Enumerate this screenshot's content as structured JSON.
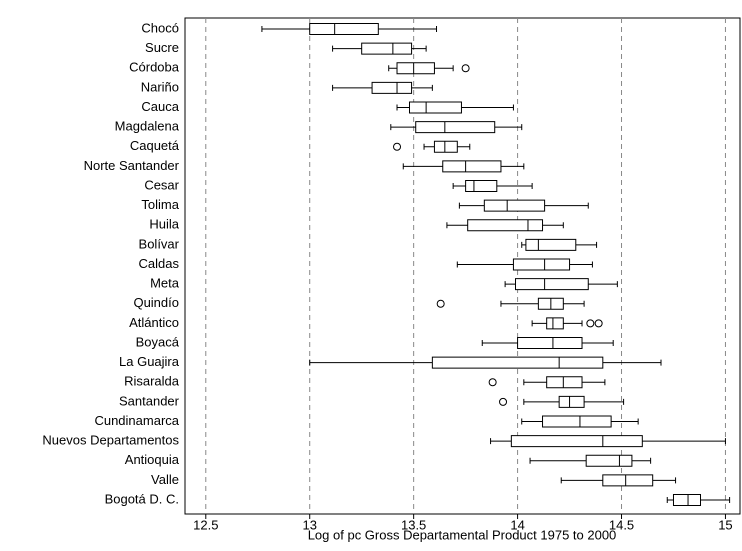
{
  "chart_data": {
    "type": "box",
    "orientation": "horizontal",
    "xlabel": "Log of pc Gross Departamental Product 1975 to 2000",
    "categories": [
      "Chocó",
      "Sucre",
      "Córdoba",
      "Nariño",
      "Cauca",
      "Magdalena",
      "Caquetá",
      "Norte Santander",
      "Cesar",
      "Tolima",
      "Huila",
      "Bolívar",
      "Caldas",
      "Meta",
      "Quindío",
      "Atlántico",
      "Boyacá",
      "La Guajira",
      "Risaralda",
      "Santander",
      "Cundinamarca",
      "Nuevos Departamentos",
      "Antioquia",
      "Valle",
      "Bogotá D. C."
    ],
    "low": [
      12.77,
      13.11,
      13.38,
      13.11,
      13.42,
      13.39,
      13.55,
      13.45,
      13.69,
      13.72,
      13.66,
      14.02,
      13.71,
      13.94,
      13.92,
      14.07,
      13.83,
      13.0,
      14.03,
      14.03,
      14.02,
      13.87,
      14.06,
      14.21,
      14.72
    ],
    "q1": [
      13.0,
      13.25,
      13.42,
      13.3,
      13.48,
      13.51,
      13.6,
      13.64,
      13.75,
      13.84,
      13.76,
      14.04,
      13.98,
      13.99,
      14.1,
      14.14,
      14.0,
      13.59,
      14.14,
      14.2,
      14.12,
      13.97,
      14.33,
      14.41,
      14.75
    ],
    "median": [
      13.12,
      13.4,
      13.5,
      13.42,
      13.56,
      13.65,
      13.65,
      13.75,
      13.79,
      13.95,
      14.05,
      14.1,
      14.13,
      14.13,
      14.16,
      14.17,
      14.17,
      14.2,
      14.22,
      14.25,
      14.3,
      14.41,
      14.49,
      14.52,
      14.82
    ],
    "q3": [
      13.33,
      13.49,
      13.6,
      13.49,
      13.73,
      13.89,
      13.71,
      13.92,
      13.9,
      14.13,
      14.12,
      14.28,
      14.25,
      14.34,
      14.22,
      14.22,
      14.31,
      14.41,
      14.31,
      14.32,
      14.45,
      14.6,
      14.55,
      14.65,
      14.88
    ],
    "high": [
      13.61,
      13.56,
      13.69,
      13.59,
      13.98,
      14.02,
      13.77,
      14.03,
      14.07,
      14.34,
      14.22,
      14.38,
      14.36,
      14.48,
      14.32,
      14.31,
      14.46,
      14.69,
      14.42,
      14.51,
      14.58,
      15.0,
      14.64,
      14.76,
      15.02
    ],
    "outliers": [
      [],
      [],
      [
        13.75
      ],
      [],
      [],
      [],
      [
        13.42
      ],
      [],
      [],
      [],
      [],
      [],
      [],
      [],
      [
        13.63
      ],
      [
        14.35,
        14.39
      ],
      [],
      [],
      [
        13.88
      ],
      [
        13.93
      ],
      [],
      [],
      [],
      [],
      []
    ],
    "xlim": [
      12.4,
      15.07
    ],
    "xticks": [
      12.5,
      13,
      13.5,
      14,
      14.5,
      15
    ],
    "grid": true,
    "color": "#000000"
  }
}
